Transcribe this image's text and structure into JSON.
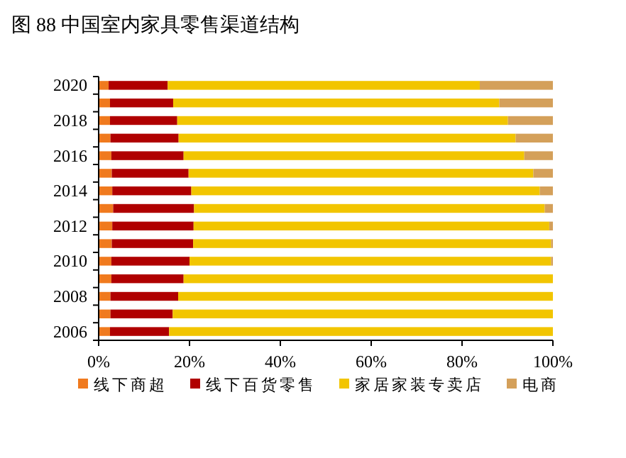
{
  "chart_data": {
    "type": "bar",
    "orientation": "horizontal",
    "stacked": true,
    "title": "图 88 中国室内家具零售渠道结构",
    "categories": [
      "2020",
      null,
      "2018",
      null,
      "2016",
      null,
      "2014",
      null,
      "2012",
      null,
      "2010",
      null,
      "2008",
      null,
      "2006"
    ],
    "series": [
      {
        "name": "线下商超",
        "color": "#f07a1e",
        "values": [
          2.2,
          2.5,
          2.5,
          2.6,
          2.8,
          2.9,
          3.0,
          3.2,
          3.0,
          2.9,
          2.8,
          2.8,
          2.6,
          2.6,
          2.5
        ]
      },
      {
        "name": "线下百货零售",
        "color": "#b00000",
        "values": [
          13.0,
          13.9,
          14.8,
          15.0,
          15.9,
          16.9,
          17.4,
          17.8,
          17.9,
          17.9,
          17.2,
          15.9,
          14.9,
          13.7,
          13.0
        ]
      },
      {
        "name": "家居家装专卖店",
        "color": "#f2c500",
        "values": [
          68.7,
          71.8,
          72.8,
          74.2,
          75.0,
          75.9,
          76.7,
          77.2,
          78.3,
          78.8,
          79.6,
          81.3,
          82.5,
          83.7,
          84.5
        ]
      },
      {
        "name": "电商",
        "color": "#d4a05a",
        "values": [
          16.1,
          11.8,
          9.9,
          8.2,
          6.3,
          4.3,
          2.9,
          1.8,
          0.8,
          0.4,
          0.4,
          0,
          0,
          0,
          0
        ]
      }
    ],
    "xlim": [
      0,
      100
    ],
    "xticks": [
      {
        "value": 0,
        "label": "0%"
      },
      {
        "value": 20,
        "label": "20%"
      },
      {
        "value": 40,
        "label": "40%"
      },
      {
        "value": 60,
        "label": "60%"
      },
      {
        "value": 80,
        "label": "80%"
      },
      {
        "value": 100,
        "label": "100%"
      }
    ],
    "legend": "bottom"
  }
}
